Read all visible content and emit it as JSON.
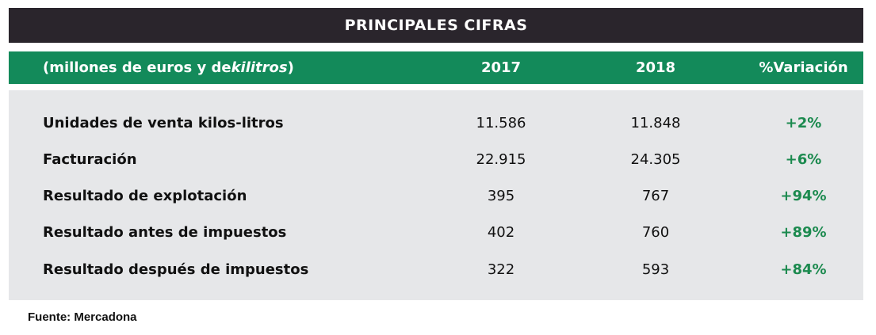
{
  "title": "PRINCIPALES CIFRAS",
  "header": {
    "label_prefix": "(millones de euros y de ",
    "label_italic": "kilitros",
    "label_suffix": ")",
    "col_2017": "2017",
    "col_2018": "2018",
    "col_variation": "%Variación"
  },
  "rows": [
    {
      "label": "Unidades de venta kilos-litros",
      "y2017": "11.586",
      "y2018": "11.848",
      "variation": "+2%"
    },
    {
      "label": "Facturación",
      "y2017": "22.915",
      "y2018": "24.305",
      "variation": "+6%"
    },
    {
      "label": "Resultado de explotación",
      "y2017": "395",
      "y2018": "767",
      "variation": "+94%"
    },
    {
      "label": "Resultado antes de impuestos",
      "y2017": "402",
      "y2018": "760",
      "variation": "+89%"
    },
    {
      "label": "Resultado después de impuestos",
      "y2017": "322",
      "y2018": "593",
      "variation": "+84%"
    }
  ],
  "source": "Fuente: Mercadona",
  "colors": {
    "title_bg": "#2a252c",
    "header_bg": "#138a5a",
    "body_bg": "#e6e7e9",
    "variation_text": "#1c8a4f"
  }
}
